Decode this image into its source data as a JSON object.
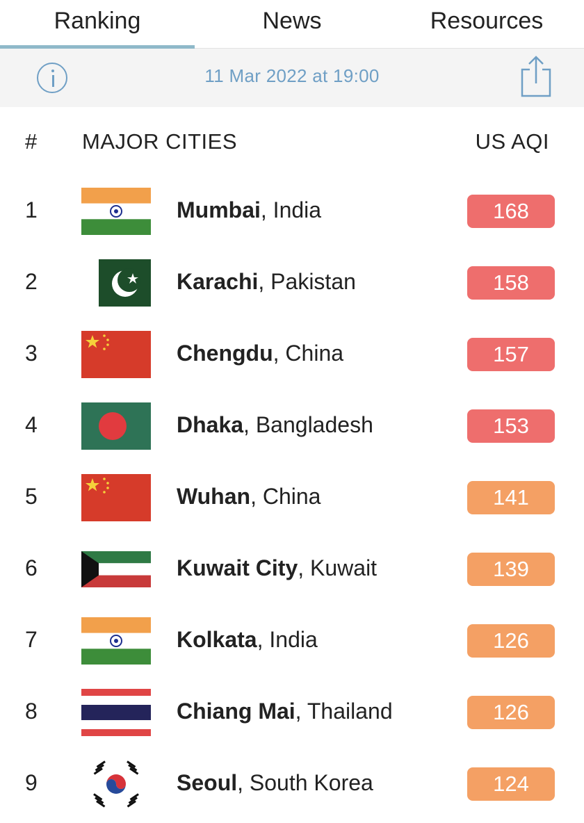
{
  "tabs": [
    {
      "label": "Ranking",
      "active": true
    },
    {
      "label": "News",
      "active": false
    },
    {
      "label": "Resources",
      "active": false
    }
  ],
  "infobar": {
    "info_icon": "info-icon",
    "timestamp": "11 Mar 2022 at 19:00",
    "share_icon": "share-icon"
  },
  "table": {
    "headers": {
      "rank": "#",
      "city": "MAJOR CITIES",
      "aqi": "US AQI"
    },
    "rows": [
      {
        "rank": "1",
        "city": "Mumbai",
        "country": ", India",
        "flag": "flag-india",
        "aqi": "168",
        "color": "#ee6e6d"
      },
      {
        "rank": "2",
        "city": "Karachi",
        "country": ", Pakistan",
        "flag": "flag-pakistan",
        "aqi": "158",
        "color": "#ee6e6d"
      },
      {
        "rank": "3",
        "city": "Chengdu",
        "country": ", China",
        "flag": "flag-china",
        "aqi": "157",
        "color": "#ee6e6d"
      },
      {
        "rank": "4",
        "city": "Dhaka",
        "country": ", Bangladesh",
        "flag": "flag-bangladesh",
        "aqi": "153",
        "color": "#ee6e6d"
      },
      {
        "rank": "5",
        "city": "Wuhan",
        "country": ", China",
        "flag": "flag-china",
        "aqi": "141",
        "color": "#f4a064"
      },
      {
        "rank": "6",
        "city": "Kuwait City",
        "country": ", Kuwait",
        "flag": "flag-kuwait",
        "aqi": "139",
        "color": "#f4a064"
      },
      {
        "rank": "7",
        "city": "Kolkata",
        "country": ", India",
        "flag": "flag-india",
        "aqi": "126",
        "color": "#f4a064"
      },
      {
        "rank": "8",
        "city": "Chiang Mai",
        "country": ", Thailand",
        "flag": "flag-thailand",
        "aqi": "126",
        "color": "#f4a064"
      },
      {
        "rank": "9",
        "city": "Seoul",
        "country": ", South Korea",
        "flag": "flag-south-korea",
        "aqi": "124",
        "color": "#f4a064"
      }
    ]
  }
}
